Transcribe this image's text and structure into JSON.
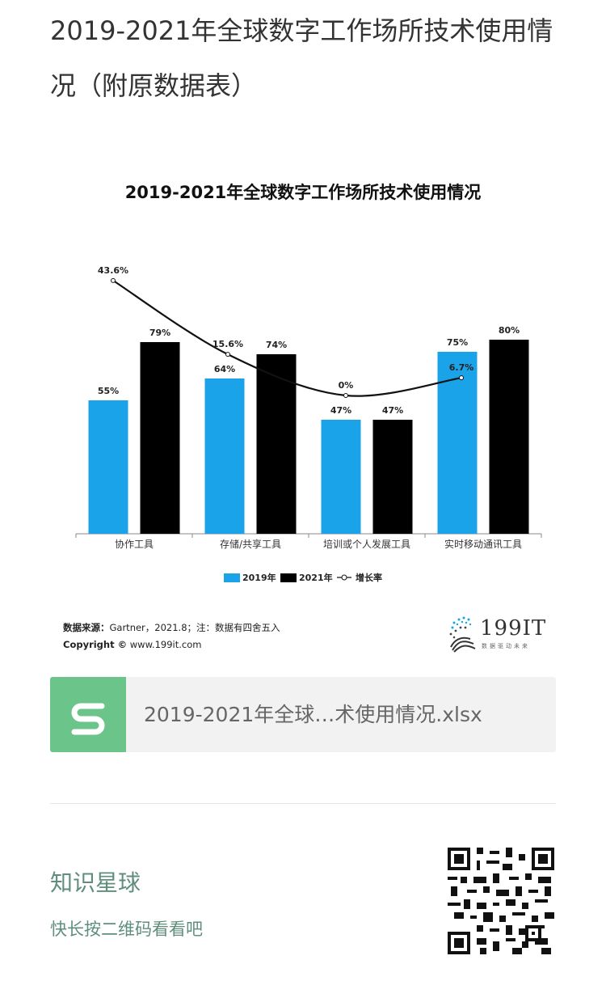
{
  "page": {
    "title": "2019-2021年全球数字工作场所技术使用情况（附原数据表）"
  },
  "chart_data": {
    "type": "bar",
    "title": "2019-2021年全球数字工作场所技术使用情况",
    "categories": [
      "协作工具",
      "存储/共享工具",
      "培训或个人发展工具",
      "实时移动通讯工具"
    ],
    "series": [
      {
        "name": "2019年",
        "values": [
          55,
          64,
          47,
          75
        ],
        "color": "#1aa3e8",
        "kind": "bar"
      },
      {
        "name": "2021年",
        "values": [
          79,
          74,
          47,
          80
        ],
        "color": "#000000",
        "kind": "bar"
      },
      {
        "name": "增长率",
        "values": [
          43.6,
          15.6,
          0,
          6.7
        ],
        "color": "#111111",
        "kind": "line"
      }
    ],
    "bar_labels": [
      [
        "55%",
        "64%",
        "47%",
        "75%"
      ],
      [
        "79%",
        "74%",
        "47%",
        "80%"
      ]
    ],
    "line_labels": [
      "43.6%",
      "15.6%",
      "0%",
      "6.7%"
    ],
    "ylim": [
      0,
      100
    ],
    "line_ylim": [
      0,
      50
    ],
    "legend_position": "bottom",
    "grid": false
  },
  "source": {
    "label": "数据来源：",
    "text": "Gartner，2021.8；注：数据有四舍五入",
    "copyright_label": "Copyright ©",
    "copyright_url": "www.199it.com"
  },
  "logo": {
    "text": "199IT",
    "tagline": "数据驱动未来"
  },
  "file": {
    "name": "2019-2021年全球…术使用情况.xlsx",
    "icon": "spreadsheet-icon"
  },
  "promo": {
    "title": "知识星球",
    "subtitle": "快长按二维码看看吧"
  }
}
